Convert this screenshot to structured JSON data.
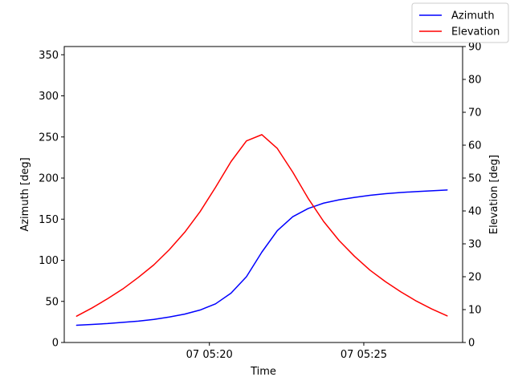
{
  "chart_data": {
    "type": "line",
    "xlabel": "Time",
    "ylabel_left": "Azimuth [deg]",
    "ylabel_right": "Elevation [deg]",
    "x_ticks": [
      {
        "label": "07 05:20",
        "minute": 20
      },
      {
        "label": "07 05:25",
        "minute": 25
      }
    ],
    "x_range_minutes": [
      15.3,
      28.2
    ],
    "ylim_left": [
      0,
      360
    ],
    "ylim_right": [
      0,
      90
    ],
    "y_ticks_left": [
      0,
      50,
      100,
      150,
      200,
      250,
      300,
      350
    ],
    "y_ticks_right": [
      0,
      10,
      20,
      30,
      40,
      50,
      60,
      70,
      80,
      90
    ],
    "x_minutes": [
      15.7,
      16.2,
      16.7,
      17.2,
      17.7,
      18.2,
      18.7,
      19.2,
      19.7,
      20.2,
      20.7,
      21.2,
      21.7,
      22.2,
      22.7,
      23.2,
      23.7,
      24.2,
      24.7,
      25.2,
      25.7,
      26.2,
      26.7,
      27.2,
      27.7
    ],
    "series": [
      {
        "name": "Azimuth",
        "axis": "left",
        "color": "#0000ff",
        "values": [
          21,
          22,
          23,
          24.5,
          26,
          28,
          31,
          34.5,
          39.5,
          47,
          60,
          80,
          110,
          136,
          153,
          163,
          169.5,
          173.5,
          176.5,
          179,
          181,
          182.5,
          183.5,
          184.5,
          185.5
        ]
      },
      {
        "name": "Elevation",
        "axis": "right",
        "color": "#ff0000",
        "values": [
          8,
          10.5,
          13.3,
          16.3,
          19.8,
          23.6,
          28.2,
          33.5,
          39.8,
          47.2,
          55,
          61.3,
          63.2,
          59,
          51.8,
          43.8,
          36.8,
          31,
          26.2,
          22,
          18.5,
          15.4,
          12.6,
          10.2,
          8.1
        ]
      }
    ],
    "legend_position": "top-right",
    "grid": false
  }
}
